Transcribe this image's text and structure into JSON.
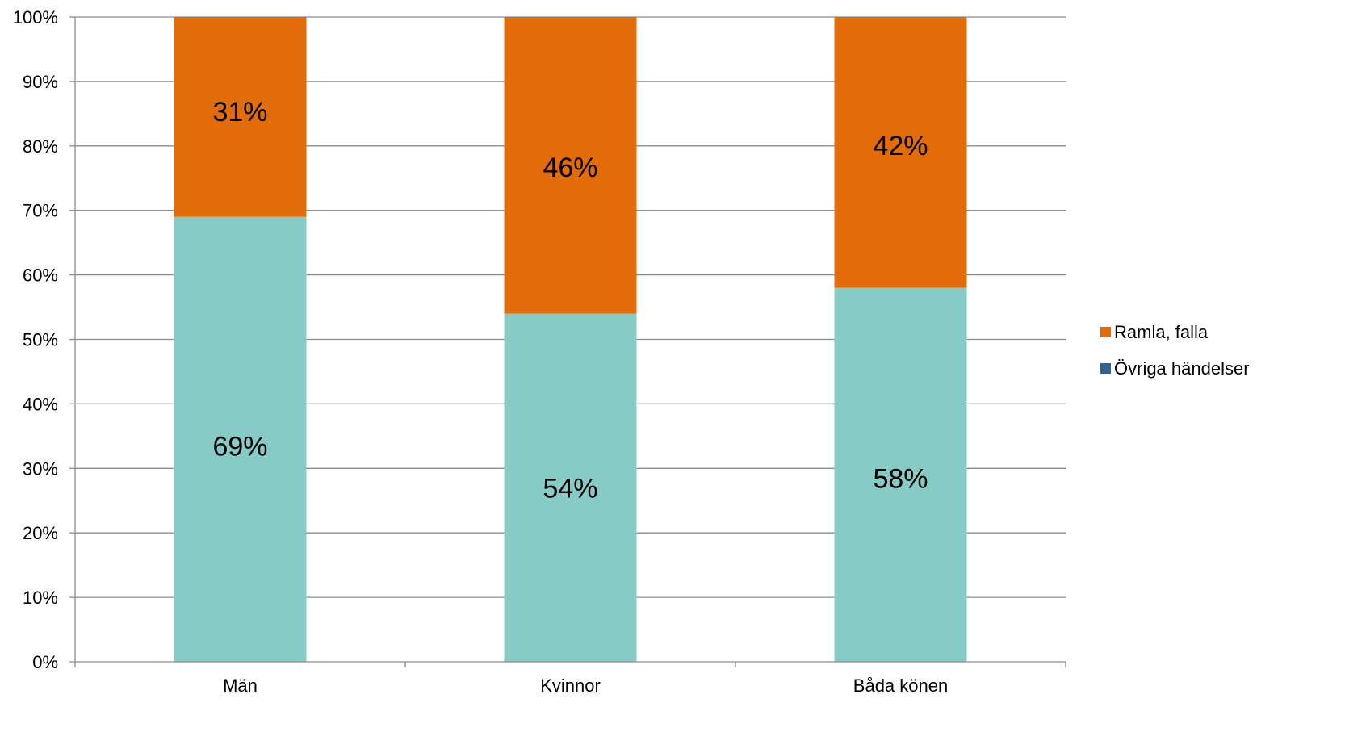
{
  "colors": {
    "ramla": "#E36C0A",
    "ovriga_fill": "#86CBC6",
    "ovriga_legend": "#366092",
    "gridline": "#8C8C8C",
    "axis": "#8C8C8C"
  },
  "chart_data": {
    "type": "bar",
    "stacked": true,
    "categories": [
      "Män",
      "Kvinnor",
      "Båda könen"
    ],
    "series": [
      {
        "name": "Övriga händelser",
        "values": [
          69,
          54,
          58
        ],
        "labels": [
          "69%",
          "54%",
          "58%"
        ]
      },
      {
        "name": "Ramla, falla",
        "values": [
          31,
          46,
          42
        ],
        "labels": [
          "31%",
          "46%",
          "42%"
        ]
      }
    ],
    "ylim": [
      0,
      100
    ],
    "yticks": [
      "0%",
      "10%",
      "20%",
      "30%",
      "40%",
      "50%",
      "60%",
      "70%",
      "80%",
      "90%",
      "100%"
    ],
    "grid": true,
    "legend_position": "right",
    "legend": [
      "Ramla, falla",
      "Övriga händelser"
    ]
  }
}
